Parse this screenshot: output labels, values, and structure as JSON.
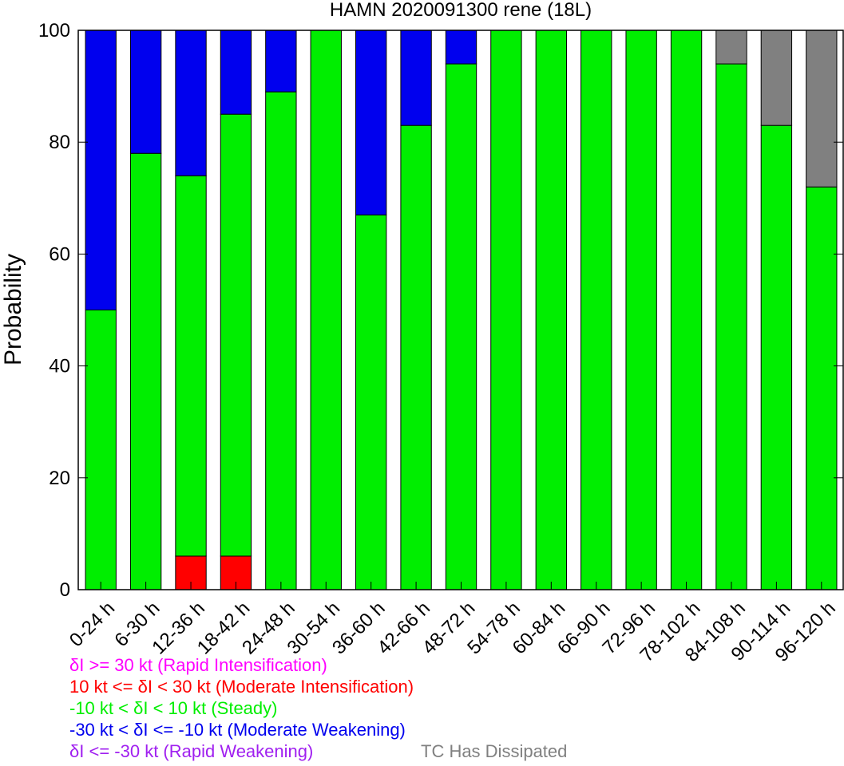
{
  "chart_data": {
    "type": "bar",
    "stacked": true,
    "title": "HAMN 2020091300 rene (18L)",
    "ylabel": "Probability",
    "xlabel": "",
    "ylim": [
      0,
      100
    ],
    "yticks": [
      0,
      20,
      40,
      60,
      80,
      100
    ],
    "grid": false,
    "categories": [
      "0-24 h",
      "6-30 h",
      "12-36 h",
      "18-42 h",
      "24-48 h",
      "30-54 h",
      "36-60 h",
      "42-66 h",
      "48-72 h",
      "54-78 h",
      "60-84 h",
      "66-90 h",
      "72-96 h",
      "78-102 h",
      "84-108 h",
      "90-114 h",
      "96-120 h"
    ],
    "series": [
      {
        "name": "δI >= 30 kt (Rapid Intensification)",
        "color": "#ff00ff",
        "values": [
          0,
          0,
          0,
          0,
          0,
          0,
          0,
          0,
          0,
          0,
          0,
          0,
          0,
          0,
          0,
          0,
          0
        ]
      },
      {
        "name": "10 kt <= δI < 30 kt (Moderate Intensification)",
        "color": "#ff0000",
        "values": [
          0,
          0,
          6,
          6,
          0,
          0,
          0,
          0,
          0,
          0,
          0,
          0,
          0,
          0,
          0,
          0,
          0
        ]
      },
      {
        "name": "-10 kt < δI < 10 kt (Steady)",
        "color": "#00ee00",
        "values": [
          50,
          78,
          68,
          79,
          89,
          100,
          67,
          83,
          94,
          100,
          100,
          100,
          100,
          100,
          94,
          83,
          72
        ]
      },
      {
        "name": "-30 kt < δI <= -10 kt (Moderate Weakening)",
        "color": "#0000ee",
        "values": [
          50,
          22,
          26,
          15,
          11,
          0,
          33,
          17,
          6,
          0,
          0,
          0,
          0,
          0,
          0,
          0,
          0
        ]
      },
      {
        "name": "δI <= -30 kt (Rapid Weakening)",
        "color": "#a020f0",
        "values": [
          0,
          0,
          0,
          0,
          0,
          0,
          0,
          0,
          0,
          0,
          0,
          0,
          0,
          0,
          0,
          0,
          0
        ]
      },
      {
        "name": "TC Has Dissipated",
        "color": "#808080",
        "values": [
          0,
          0,
          0,
          0,
          0,
          0,
          0,
          0,
          0,
          0,
          0,
          0,
          0,
          0,
          6,
          17,
          28
        ]
      }
    ],
    "legend_placement": "bottom-left"
  }
}
